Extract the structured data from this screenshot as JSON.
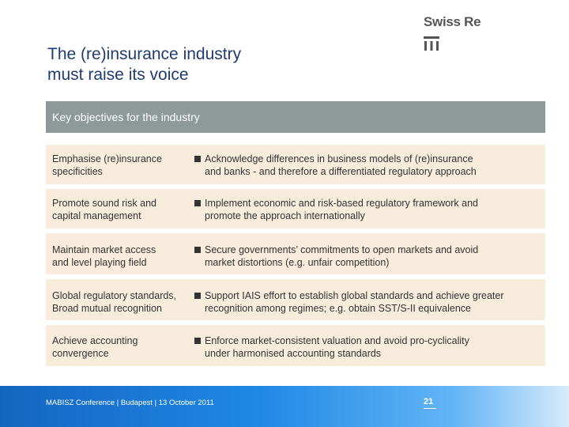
{
  "slide": {
    "title_line1": "The (re)insurance industry",
    "title_line2": "must raise its voice",
    "logo_text": "Swiss Re",
    "header": "Key objectives for the industry"
  },
  "rows": [
    {
      "left_line1": "Emphasise (re)insurance",
      "left_line2": "specificities",
      "right_line1": "Acknowledge differences in business models of (re)insurance",
      "right_line2": "and banks - and therefore a differentiated regulatory approach"
    },
    {
      "left_line1": "Promote sound risk and",
      "left_line2": "capital management",
      "right_line1": "Implement economic and risk-based regulatory framework and",
      "right_line2": "promote the approach internationally"
    },
    {
      "left_line1": "Maintain market access",
      "left_line2": "and level playing field",
      "right_line1": "Secure governments’ commitments to open markets and avoid",
      "right_line2": "market distortions (e.g. unfair competition)"
    },
    {
      "left_line1": "Global regulatory standards,",
      "left_line2": "Broad mutual recognition",
      "right_line1": "Support IAIS effort to establish global standards and achieve greater",
      "right_line2": "recognition among regimes; e.g. obtain SST/S-II equivalence"
    },
    {
      "left_line1": "Achieve accounting",
      "left_line2": "convergence",
      "right_line1": "Enforce market-consistent valuation and avoid pro-cyclicality",
      "right_line2": "under harmonised accounting standards"
    }
  ],
  "footer": {
    "text": "MABISZ Conference | Budapest | 13 October 2011",
    "page_number": "21"
  },
  "colors": {
    "title": "#1f3b73",
    "header_bar": "#8e9a99",
    "row_background": "#f8eddc",
    "footer_blue": "#1565c0"
  }
}
